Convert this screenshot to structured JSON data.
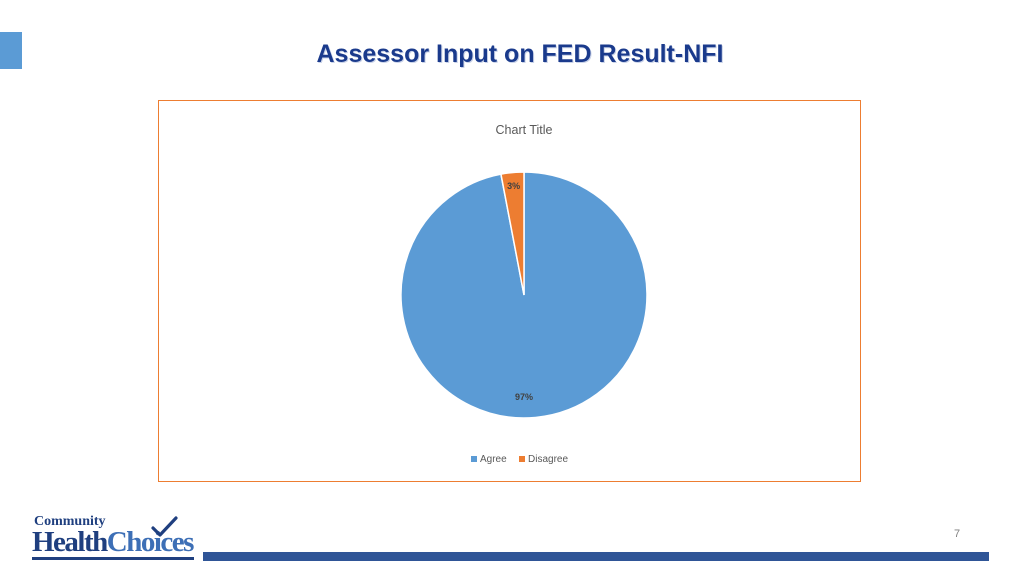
{
  "slide": {
    "title": "Assessor Input on FED Result-NFI",
    "page_number": "7"
  },
  "logo": {
    "line1": "Community",
    "word_health": "Health",
    "word_choices": "Choices"
  },
  "colors": {
    "title": "#1a3a8c",
    "agree": "#5b9bd5",
    "disagree": "#ed7d31",
    "frame_border": "#ed7d31",
    "footer_bar": "#2f5597",
    "accent": "#5b9bd5"
  },
  "chart_data": {
    "type": "pie",
    "title": "Chart Title",
    "categories": [
      "Agree",
      "Disagree"
    ],
    "values": [
      97,
      3
    ],
    "data_labels": [
      "97%",
      "3%"
    ],
    "colors": [
      "#5b9bd5",
      "#ed7d31"
    ],
    "legend_position": "bottom",
    "start_angle": "top",
    "direction": "clockwise-from-second"
  }
}
